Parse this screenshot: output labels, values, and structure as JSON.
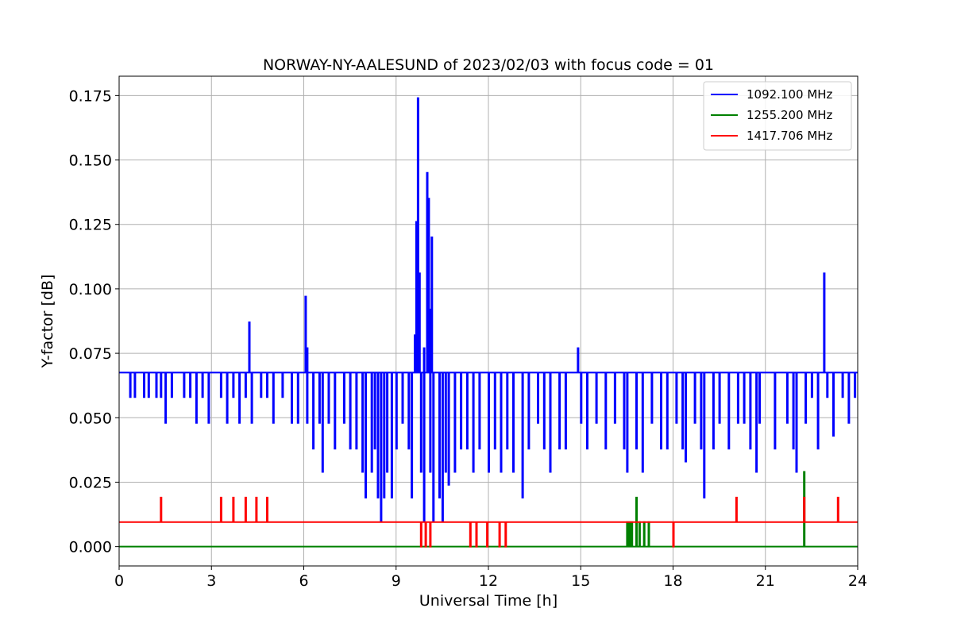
{
  "chart_data": {
    "type": "line",
    "title": "NORWAY-NY-AALESUND of 2023/02/03 with focus code = 01",
    "xlabel": "Universal Time [h]",
    "ylabel": "Y-factor [dB]",
    "xlim": [
      0,
      24
    ],
    "ylim": [
      -0.0075,
      0.1825
    ],
    "xticks": [
      0,
      3,
      6,
      9,
      12,
      15,
      18,
      21,
      24
    ],
    "xtick_labels": [
      "0",
      "3",
      "6",
      "9",
      "12",
      "15",
      "18",
      "21",
      "24"
    ],
    "yticks": [
      0.0,
      0.025,
      0.05,
      0.075,
      0.1,
      0.125,
      0.15,
      0.175
    ],
    "ytick_labels": [
      "0.000",
      "0.025",
      "0.050",
      "0.075",
      "0.100",
      "0.125",
      "0.150",
      "0.175"
    ],
    "grid": true,
    "legend_position": "top-right",
    "series": [
      {
        "name": "1092.100 MHz",
        "color": "#0000ff",
        "baseline": 0.0675,
        "dips": [
          [
            0.35,
            0.058
          ],
          [
            0.5,
            0.058
          ],
          [
            0.8,
            0.058
          ],
          [
            0.95,
            0.058
          ],
          [
            1.2,
            0.058
          ],
          [
            1.35,
            0.058
          ],
          [
            1.5,
            0.048
          ],
          [
            1.7,
            0.058
          ],
          [
            2.1,
            0.058
          ],
          [
            2.3,
            0.058
          ],
          [
            2.5,
            0.048
          ],
          [
            2.7,
            0.058
          ],
          [
            2.9,
            0.048
          ],
          [
            3.3,
            0.058
          ],
          [
            3.5,
            0.048
          ],
          [
            3.7,
            0.058
          ],
          [
            3.9,
            0.048
          ],
          [
            4.1,
            0.058
          ],
          [
            4.3,
            0.048
          ],
          [
            4.6,
            0.058
          ],
          [
            4.8,
            0.058
          ],
          [
            5.0,
            0.048
          ],
          [
            5.3,
            0.058
          ],
          [
            5.6,
            0.048
          ],
          [
            5.8,
            0.048
          ],
          [
            6.1,
            0.048
          ],
          [
            6.3,
            0.038
          ],
          [
            6.5,
            0.048
          ],
          [
            6.6,
            0.029
          ],
          [
            6.8,
            0.048
          ],
          [
            7.0,
            0.038
          ],
          [
            7.3,
            0.048
          ],
          [
            7.5,
            0.038
          ],
          [
            7.7,
            0.038
          ],
          [
            7.9,
            0.029
          ],
          [
            8.0,
            0.019
          ],
          [
            8.2,
            0.029
          ],
          [
            8.3,
            0.038
          ],
          [
            8.4,
            0.019
          ],
          [
            8.5,
            0.01
          ],
          [
            8.6,
            0.019
          ],
          [
            8.7,
            0.029
          ],
          [
            8.85,
            0.019
          ],
          [
            9.0,
            0.038
          ],
          [
            9.2,
            0.048
          ],
          [
            9.4,
            0.038
          ],
          [
            9.5,
            0.019
          ],
          [
            9.8,
            0.029
          ],
          [
            9.9,
            0.01
          ],
          [
            10.1,
            0.029
          ],
          [
            10.2,
            0.01
          ],
          [
            10.4,
            0.019
          ],
          [
            10.5,
            0.01
          ],
          [
            10.6,
            0.029
          ],
          [
            10.7,
            0.024
          ],
          [
            10.9,
            0.029
          ],
          [
            11.1,
            0.038
          ],
          [
            11.3,
            0.038
          ],
          [
            11.5,
            0.029
          ],
          [
            11.7,
            0.038
          ],
          [
            12.0,
            0.029
          ],
          [
            12.2,
            0.038
          ],
          [
            12.4,
            0.029
          ],
          [
            12.6,
            0.038
          ],
          [
            12.8,
            0.029
          ],
          [
            13.1,
            0.019
          ],
          [
            13.3,
            0.038
          ],
          [
            13.6,
            0.048
          ],
          [
            13.8,
            0.038
          ],
          [
            14.0,
            0.029
          ],
          [
            14.3,
            0.038
          ],
          [
            14.5,
            0.038
          ],
          [
            15.0,
            0.048
          ],
          [
            15.2,
            0.038
          ],
          [
            15.5,
            0.048
          ],
          [
            15.8,
            0.038
          ],
          [
            16.1,
            0.048
          ],
          [
            16.4,
            0.038
          ],
          [
            16.5,
            0.029
          ],
          [
            16.8,
            0.038
          ],
          [
            17.0,
            0.029
          ],
          [
            17.3,
            0.048
          ],
          [
            17.6,
            0.038
          ],
          [
            17.8,
            0.038
          ],
          [
            18.1,
            0.048
          ],
          [
            18.3,
            0.038
          ],
          [
            18.4,
            0.033
          ],
          [
            18.7,
            0.048
          ],
          [
            18.9,
            0.038
          ],
          [
            19.0,
            0.019
          ],
          [
            19.3,
            0.038
          ],
          [
            19.5,
            0.048
          ],
          [
            19.8,
            0.038
          ],
          [
            20.1,
            0.048
          ],
          [
            20.3,
            0.048
          ],
          [
            20.5,
            0.038
          ],
          [
            20.7,
            0.029
          ],
          [
            20.8,
            0.048
          ],
          [
            21.3,
            0.038
          ],
          [
            21.7,
            0.048
          ],
          [
            21.9,
            0.038
          ],
          [
            22.0,
            0.029
          ],
          [
            22.3,
            0.048
          ],
          [
            22.5,
            0.058
          ],
          [
            22.7,
            0.038
          ],
          [
            23.0,
            0.058
          ],
          [
            23.2,
            0.043
          ],
          [
            23.5,
            0.058
          ],
          [
            23.7,
            0.048
          ],
          [
            23.9,
            0.058
          ]
        ],
        "spikes": [
          [
            4.22,
            0.087
          ],
          [
            6.05,
            0.097
          ],
          [
            6.1,
            0.077
          ],
          [
            9.6,
            0.082
          ],
          [
            9.65,
            0.126
          ],
          [
            9.7,
            0.174
          ],
          [
            9.75,
            0.106
          ],
          [
            9.9,
            0.077
          ],
          [
            10.0,
            0.145
          ],
          [
            10.05,
            0.135
          ],
          [
            10.1,
            0.092
          ],
          [
            10.15,
            0.12
          ],
          [
            14.9,
            0.077
          ],
          [
            22.9,
            0.106
          ]
        ]
      },
      {
        "name": "1255.200 MHz",
        "color": "#008000",
        "baseline": 0.0,
        "spikes": [
          [
            16.5,
            0.0095
          ],
          [
            16.55,
            0.0095
          ],
          [
            16.6,
            0.0095
          ],
          [
            16.65,
            0.0095
          ],
          [
            16.8,
            0.019
          ],
          [
            16.9,
            0.0095
          ],
          [
            17.05,
            0.0095
          ],
          [
            17.2,
            0.0095
          ],
          [
            22.25,
            0.029
          ]
        ]
      },
      {
        "name": "1417.706 MHz",
        "color": "#ff0000",
        "baseline": 0.0095,
        "spikes": [
          [
            1.35,
            0.019
          ],
          [
            3.3,
            0.019
          ],
          [
            3.7,
            0.019
          ],
          [
            4.1,
            0.019
          ],
          [
            4.45,
            0.019
          ],
          [
            4.8,
            0.019
          ],
          [
            20.05,
            0.019
          ],
          [
            22.25,
            0.019
          ],
          [
            23.35,
            0.019
          ]
        ],
        "dips": [
          [
            9.8,
            0.0
          ],
          [
            9.95,
            0.0
          ],
          [
            10.1,
            0.0
          ],
          [
            11.4,
            0.0
          ],
          [
            11.6,
            0.0
          ],
          [
            11.95,
            0.0
          ],
          [
            12.35,
            0.0
          ],
          [
            12.55,
            0.0
          ],
          [
            18.0,
            0.0
          ]
        ]
      }
    ]
  }
}
